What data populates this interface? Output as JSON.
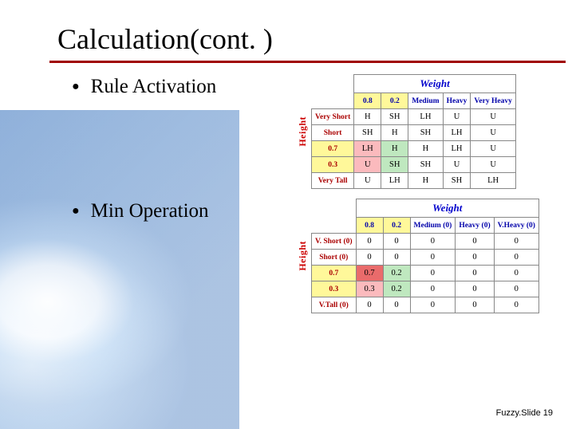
{
  "title": "Calculation(cont. )",
  "bullets": {
    "rule_activation": "Rule Activation",
    "min_operation": "Min Operation"
  },
  "labels": {
    "weight": "Weight",
    "height": "Height"
  },
  "table1": {
    "col_headers_val": [
      "0.8",
      "0.2"
    ],
    "col_headers_txt": [
      "Medium",
      "Heavy",
      "Very Heavy"
    ],
    "rows": [
      {
        "head": "Very Short",
        "head_hl": "",
        "cells": [
          {
            "v": "H",
            "hl": ""
          },
          {
            "v": "SH",
            "hl": ""
          },
          {
            "v": "LH",
            "hl": ""
          },
          {
            "v": "U",
            "hl": ""
          },
          {
            "v": "U",
            "hl": ""
          }
        ]
      },
      {
        "head": "Short",
        "head_hl": "",
        "cells": [
          {
            "v": "SH",
            "hl": ""
          },
          {
            "v": "H",
            "hl": ""
          },
          {
            "v": "SH",
            "hl": ""
          },
          {
            "v": "LH",
            "hl": ""
          },
          {
            "v": "U",
            "hl": ""
          }
        ]
      },
      {
        "head": "0.7",
        "head_hl": "hl-yellow",
        "cells": [
          {
            "v": "LH",
            "hl": "hl-pink"
          },
          {
            "v": "H",
            "hl": "hl-green"
          },
          {
            "v": "H",
            "hl": ""
          },
          {
            "v": "LH",
            "hl": ""
          },
          {
            "v": "U",
            "hl": ""
          }
        ]
      },
      {
        "head": "0.3",
        "head_hl": "hl-yellow",
        "cells": [
          {
            "v": "U",
            "hl": "hl-pink"
          },
          {
            "v": "SH",
            "hl": "hl-green"
          },
          {
            "v": "SH",
            "hl": ""
          },
          {
            "v": "U",
            "hl": ""
          },
          {
            "v": "U",
            "hl": ""
          }
        ]
      },
      {
        "head": "Very Tall",
        "head_hl": "",
        "cells": [
          {
            "v": "U",
            "hl": ""
          },
          {
            "v": "LH",
            "hl": ""
          },
          {
            "v": "H",
            "hl": ""
          },
          {
            "v": "SH",
            "hl": ""
          },
          {
            "v": "LH",
            "hl": ""
          }
        ]
      }
    ],
    "colhl": [
      "hl-yellow",
      "hl-yellow",
      "",
      "",
      ""
    ]
  },
  "table2": {
    "col_headers_val": [
      "0.8",
      "0.2"
    ],
    "col_headers_txt": [
      "Medium (0)",
      "Heavy (0)",
      "V.Heavy (0)"
    ],
    "rows": [
      {
        "head": "V. Short (0)",
        "head_hl": "",
        "cells": [
          {
            "v": "0",
            "hl": ""
          },
          {
            "v": "0",
            "hl": ""
          },
          {
            "v": "0",
            "hl": ""
          },
          {
            "v": "0",
            "hl": ""
          },
          {
            "v": "0",
            "hl": ""
          }
        ]
      },
      {
        "head": "Short (0)",
        "head_hl": "",
        "cells": [
          {
            "v": "0",
            "hl": ""
          },
          {
            "v": "0",
            "hl": ""
          },
          {
            "v": "0",
            "hl": ""
          },
          {
            "v": "0",
            "hl": ""
          },
          {
            "v": "0",
            "hl": ""
          }
        ]
      },
      {
        "head": "0.7",
        "head_hl": "hl-yellow",
        "cells": [
          {
            "v": "0.7",
            "hl": "hl-red"
          },
          {
            "v": "0.2",
            "hl": "hl-green"
          },
          {
            "v": "0",
            "hl": ""
          },
          {
            "v": "0",
            "hl": ""
          },
          {
            "v": "0",
            "hl": ""
          }
        ]
      },
      {
        "head": "0.3",
        "head_hl": "hl-yellow",
        "cells": [
          {
            "v": "0.3",
            "hl": "hl-pink"
          },
          {
            "v": "0.2",
            "hl": "hl-green"
          },
          {
            "v": "0",
            "hl": ""
          },
          {
            "v": "0",
            "hl": ""
          },
          {
            "v": "0",
            "hl": ""
          }
        ]
      },
      {
        "head": "V.Tall (0)",
        "head_hl": "",
        "cells": [
          {
            "v": "0",
            "hl": ""
          },
          {
            "v": "0",
            "hl": ""
          },
          {
            "v": "0",
            "hl": ""
          },
          {
            "v": "0",
            "hl": ""
          },
          {
            "v": "0",
            "hl": ""
          }
        ]
      }
    ],
    "colhl": [
      "hl-yellow",
      "hl-yellow",
      "",
      "",
      ""
    ]
  },
  "footer": "Fuzzy.Slide 19"
}
